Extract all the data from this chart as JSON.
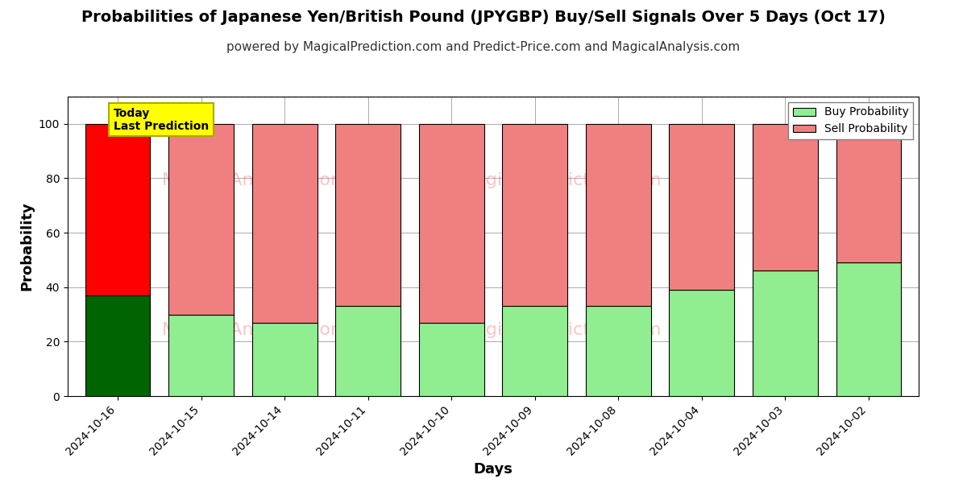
{
  "title": "Probabilities of Japanese Yen/British Pound (JPYGBP) Buy/Sell Signals Over 5 Days (Oct 17)",
  "subtitle": "powered by MagicalPrediction.com and Predict-Price.com and MagicalAnalysis.com",
  "xlabel": "Days",
  "ylabel": "Probability",
  "categories": [
    "2024-10-16",
    "2024-10-15",
    "2024-10-14",
    "2024-10-11",
    "2024-10-10",
    "2024-10-09",
    "2024-10-08",
    "2024-10-04",
    "2024-10-03",
    "2024-10-02"
  ],
  "buy_values": [
    37,
    30,
    27,
    33,
    27,
    33,
    33,
    39,
    46,
    49
  ],
  "sell_values": [
    63,
    70,
    73,
    67,
    73,
    67,
    67,
    61,
    54,
    51
  ],
  "today_index": 0,
  "buy_color_today": "#006400",
  "sell_color_today": "#FF0000",
  "buy_color_normal": "#90EE90",
  "sell_color_normal": "#F08080",
  "bar_edge_color": "#000000",
  "ylim": [
    0,
    110
  ],
  "dashed_line_y": 110,
  "today_label_text": "Today\nLast Prediction",
  "today_label_bg": "#FFFF00",
  "legend_buy": "Buy Probability",
  "legend_sell": "Sell Probability",
  "background_color": "#ffffff",
  "grid_color": "#aaaaaa",
  "title_fontsize": 14,
  "subtitle_fontsize": 11,
  "axis_label_fontsize": 13,
  "tick_fontsize": 10
}
